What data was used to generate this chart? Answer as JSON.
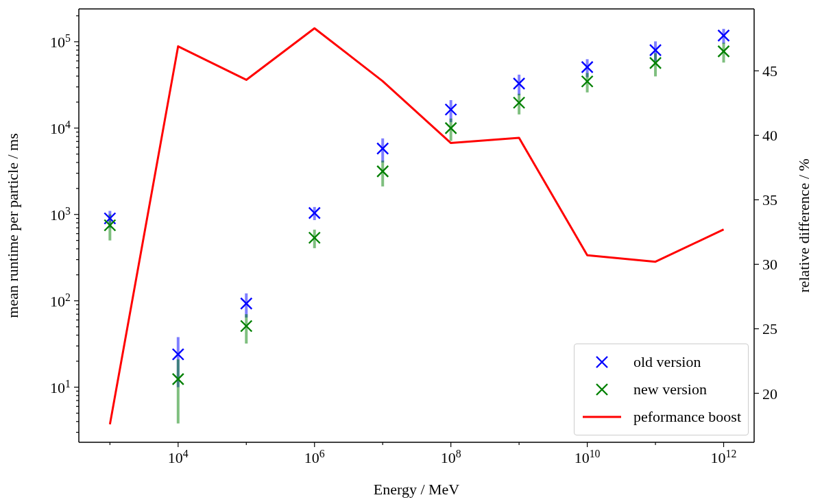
{
  "chart_data": {
    "type": "scatter",
    "xlabel": "Energy / MeV",
    "ylabel": "mean runtime per particle / ms",
    "y2label": "relative difference / %",
    "x": [
      1000,
      10000,
      100000,
      1000000,
      10000000,
      100000000,
      1000000000,
      10000000000,
      100000000000,
      1000000000000
    ],
    "series": [
      {
        "name": "old version",
        "marker": "cross",
        "color": "#0000ff",
        "values": [
          900,
          24,
          93,
          1040,
          5800,
          16400,
          32800,
          50800,
          80000,
          118000
        ],
        "errors": [
          200,
          14,
          29,
          180,
          1800,
          4700,
          8800,
          12000,
          21000,
          23000
        ]
      },
      {
        "name": "new version",
        "marker": "cross",
        "color": "#008000",
        "values": [
          750,
          12.4,
          51,
          537,
          3160,
          10000,
          19700,
          34700,
          56700,
          77400
        ],
        "errors": [
          250,
          8.6,
          19,
          130,
          1050,
          2900,
          5300,
          8800,
          17000,
          20000
        ]
      },
      {
        "name": "peformance boost",
        "type": "line",
        "axis": "y2",
        "color": "#ff0000",
        "values": [
          17.6,
          46.9,
          44.3,
          48.3,
          44.2,
          39.4,
          39.8,
          30.7,
          30.2,
          32.7
        ]
      }
    ],
    "line_style": "solid",
    "log": "xy",
    "grid": false,
    "legend": "bottom right",
    "xlim": [
      350,
      2800000000000
    ],
    "xticks": [
      {
        "value": 1000,
        "label": null
      },
      {
        "value": 10000,
        "label": "10$^{4}$"
      },
      {
        "value": 100000,
        "label": null
      },
      {
        "value": 1000000,
        "label": "10$^{6}$"
      },
      {
        "value": 10000000,
        "label": null
      },
      {
        "value": 100000000,
        "label": "10$^{8}$"
      },
      {
        "value": 1000000000,
        "label": null
      },
      {
        "value": 10000000000,
        "label": "10$^{10}$"
      },
      {
        "value": 100000000000,
        "label": null
      },
      {
        "value": 1000000000000,
        "label": "10$^{12}$"
      }
    ],
    "ylim": [
      2.3,
      240000
    ],
    "yticks": [
      {
        "value": 3,
        "label": null
      },
      {
        "value": 4,
        "label": null
      },
      {
        "value": 5,
        "label": null
      },
      {
        "value": 6,
        "label": null
      },
      {
        "value": 7,
        "label": null
      },
      {
        "value": 8,
        "label": null
      },
      {
        "value": 9,
        "label": null
      },
      {
        "value": 10,
        "label": "10$^{1}$"
      },
      {
        "value": 20,
        "label": null
      },
      {
        "value": 30,
        "label": null
      },
      {
        "value": 40,
        "label": null
      },
      {
        "value": 50,
        "label": null
      },
      {
        "value": 60,
        "label": null
      },
      {
        "value": 70,
        "label": null
      },
      {
        "value": 80,
        "label": null
      },
      {
        "value": 90,
        "label": null
      },
      {
        "value": 100,
        "label": "10$^{2}$"
      },
      {
        "value": 200,
        "label": null
      },
      {
        "value": 300,
        "label": null
      },
      {
        "value": 400,
        "label": null
      },
      {
        "value": 500,
        "label": null
      },
      {
        "value": 600,
        "label": null
      },
      {
        "value": 700,
        "label": null
      },
      {
        "value": 800,
        "label": null
      },
      {
        "value": 900,
        "label": null
      },
      {
        "value": 1000,
        "label": "10$^{3}$"
      },
      {
        "value": 2000,
        "label": null
      },
      {
        "value": 3000,
        "label": null
      },
      {
        "value": 4000,
        "label": null
      },
      {
        "value": 5000,
        "label": null
      },
      {
        "value": 6000,
        "label": null
      },
      {
        "value": 7000,
        "label": null
      },
      {
        "value": 8000,
        "label": null
      },
      {
        "value": 9000,
        "label": null
      },
      {
        "value": 10000,
        "label": "10$^{4}$"
      },
      {
        "value": 20000,
        "label": null
      },
      {
        "value": 30000,
        "label": null
      },
      {
        "value": 40000,
        "label": null
      },
      {
        "value": 50000,
        "label": null
      },
      {
        "value": 60000,
        "label": null
      },
      {
        "value": 70000,
        "label": null
      },
      {
        "value": 80000,
        "label": null
      },
      {
        "value": 90000,
        "label": null
      },
      {
        "value": 100000,
        "label": "10$^{5}$"
      },
      {
        "value": 200000,
        "label": null
      }
    ],
    "y2lim": [
      16.2,
      49.8
    ],
    "y2ticks": [
      20,
      25,
      30,
      35,
      40,
      45
    ]
  }
}
